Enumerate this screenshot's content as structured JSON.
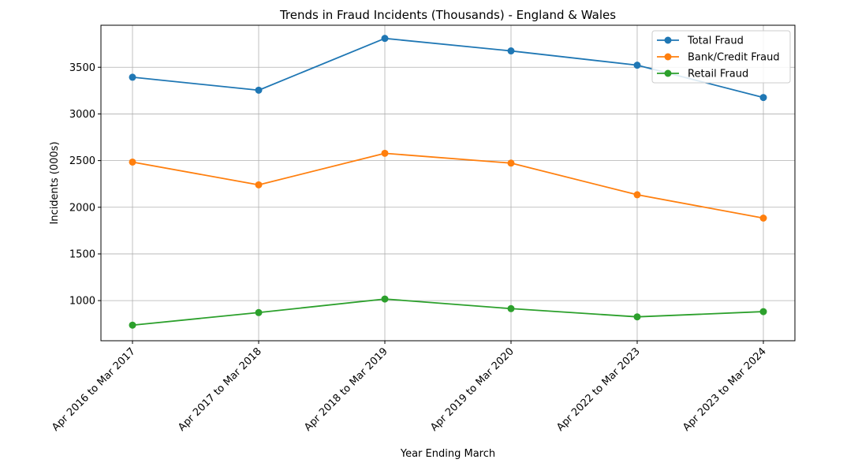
{
  "chart_data": {
    "type": "line",
    "title": "Trends in Fraud Incidents (Thousands) - England & Wales",
    "xlabel": "Year Ending March",
    "ylabel": "Incidents (000s)",
    "categories": [
      "Apr 2016 to Mar 2017",
      "Apr 2017 to Mar 2018",
      "Apr 2018 to Mar 2019",
      "Apr 2019 to Mar 2020",
      "Apr 2022 to Mar 2023",
      "Apr 2023 to Mar 2024"
    ],
    "series": [
      {
        "name": "Total Fraud",
        "color": "#1f77b4",
        "values": [
          3393,
          3254,
          3809,
          3675,
          3522,
          3176
        ]
      },
      {
        "name": "Bank/Credit Fraud",
        "color": "#ff7f0e",
        "values": [
          2484,
          2240,
          2578,
          2473,
          2134,
          1884
        ]
      },
      {
        "name": "Retail Fraud",
        "color": "#2ca02c",
        "values": [
          737,
          872,
          1017,
          914,
          826,
          882
        ]
      }
    ],
    "yticks": [
      1000,
      1500,
      2000,
      2500,
      3000,
      3500
    ],
    "ylim": [
      570,
      3950
    ],
    "grid": true,
    "legend_position": "top-right"
  }
}
